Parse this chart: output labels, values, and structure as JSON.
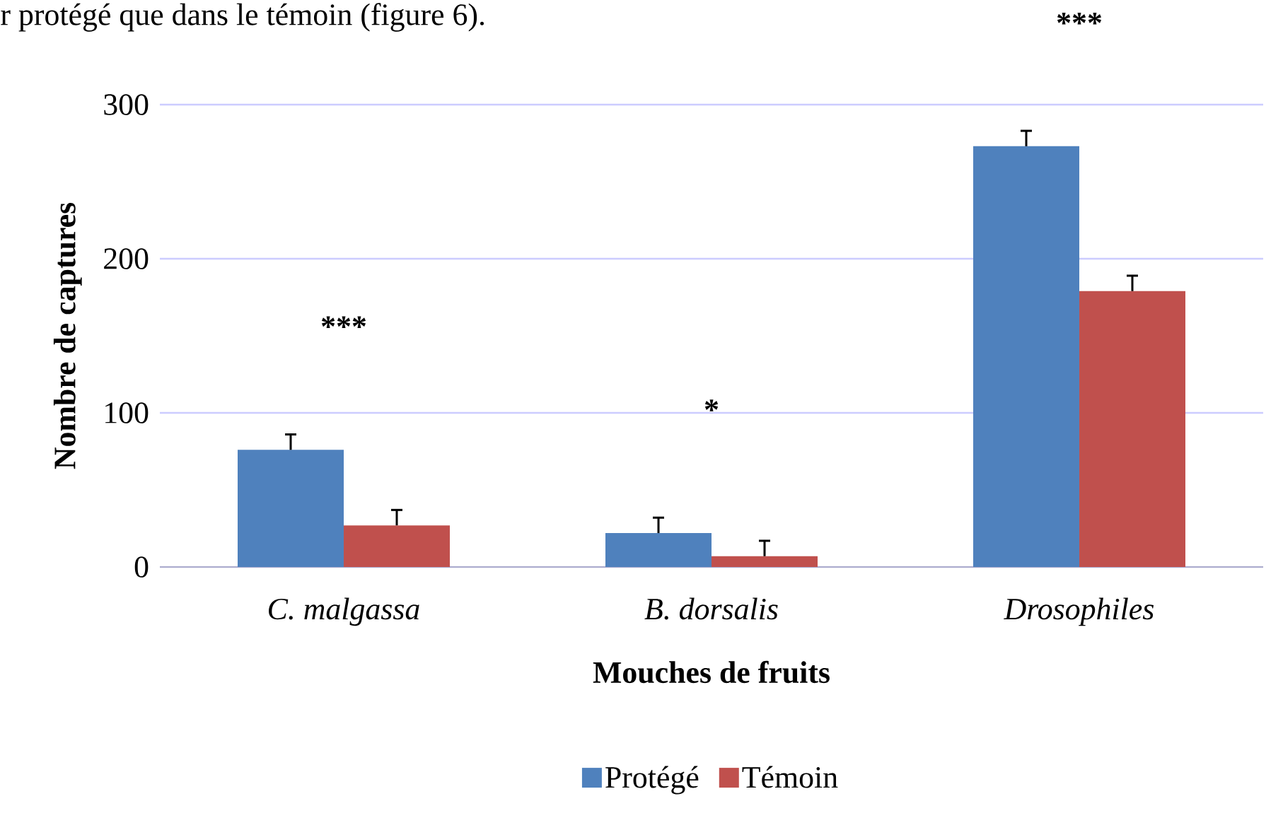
{
  "chart_data": {
    "type": "bar",
    "xlabel": "Mouches de fruits",
    "ylabel": "Nombre de captures",
    "categories": [
      "C. malgassa",
      "B. dorsalis",
      "Drosophiles"
    ],
    "series": [
      {
        "name": "Protégé",
        "color": "#4f81bd",
        "values": [
          76,
          22,
          273
        ],
        "errors": [
          10,
          10,
          10
        ]
      },
      {
        "name": "Témoin",
        "color": "#c0504d",
        "values": [
          27,
          7,
          179
        ],
        "errors": [
          10,
          10,
          10
        ]
      }
    ],
    "ylim": [
      0,
      300
    ],
    "yticks": [
      0,
      100,
      200,
      300
    ],
    "grid": "y",
    "legend": "bottom",
    "annotations": [
      "r protégé que dans le témoin (figure 6).",
      "***",
      "*",
      "***"
    ]
  }
}
